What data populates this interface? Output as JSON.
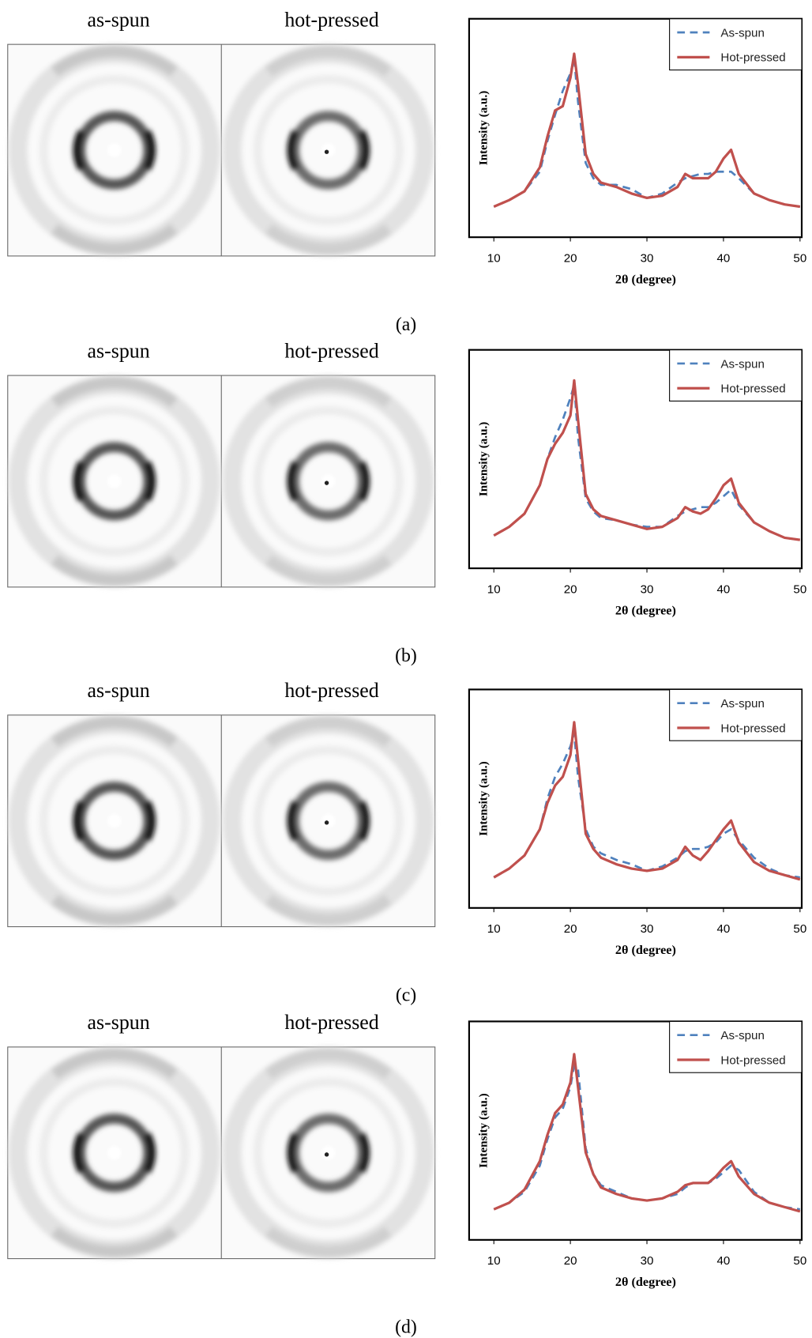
{
  "chart_data": [
    {
      "type": "line",
      "image_labels": [
        "as-spun",
        "hot-pressed"
      ],
      "panel_label": "(a)",
      "y_label": "Intensity (a.u.)",
      "x_label": "2θ (degree)",
      "legend": "upper right",
      "xlim": [
        10,
        50
      ],
      "xticks": [
        10,
        20,
        30,
        40,
        50
      ],
      "ylim": [
        0,
        100
      ],
      "x": [
        10,
        12,
        14,
        16,
        17,
        18,
        19,
        20,
        20.5,
        21,
        22,
        23,
        24,
        26,
        28,
        30,
        32,
        34,
        35,
        36,
        37,
        38,
        39,
        40,
        41,
        42,
        44,
        46,
        48,
        50
      ],
      "series": [
        {
          "name": "As-spun",
          "color": "#4f81bd",
          "dash": true,
          "values": [
            14,
            17,
            21,
            30,
            44,
            56,
            67,
            75,
            82,
            62,
            34,
            27,
            24,
            24,
            22,
            18,
            20,
            25,
            27,
            28,
            29,
            29,
            30,
            30,
            30,
            27,
            20,
            17,
            15,
            14
          ]
        },
        {
          "name": "Hot-pressed",
          "color": "#c0504d",
          "dash": false,
          "values": [
            14,
            17,
            21,
            32,
            46,
            58,
            60,
            73,
            84,
            70,
            38,
            29,
            25,
            23,
            20,
            18,
            19,
            23,
            29,
            27,
            27,
            27,
            30,
            36,
            40,
            29,
            20,
            17,
            15,
            14
          ]
        }
      ]
    },
    {
      "type": "line",
      "image_labels": [
        "as-spun",
        "hot-pressed"
      ],
      "panel_label": "(b)",
      "y_label": "Intensity (a.u.)",
      "x_label": "2θ (degree)",
      "legend": "upper right",
      "xlim": [
        10,
        50
      ],
      "xticks": [
        10,
        20,
        30,
        40,
        50
      ],
      "ylim": [
        0,
        100
      ],
      "x": [
        10,
        12,
        14,
        16,
        17,
        18,
        19,
        20,
        20.5,
        21,
        22,
        23,
        24,
        26,
        28,
        30,
        32,
        34,
        35,
        36,
        37,
        38,
        39,
        40,
        41,
        42,
        44,
        46,
        48,
        50
      ],
      "series": [
        {
          "name": "As-spun",
          "color": "#4f81bd",
          "dash": true,
          "values": [
            15,
            19,
            25,
            38,
            50,
            60,
            68,
            78,
            84,
            60,
            32,
            26,
            23,
            22,
            20,
            19,
            19,
            24,
            26,
            27,
            28,
            28,
            30,
            33,
            36,
            29,
            21,
            17,
            14,
            13
          ]
        },
        {
          "name": "Hot-pressed",
          "color": "#c0504d",
          "dash": false,
          "values": [
            15,
            19,
            25,
            38,
            50,
            57,
            62,
            70,
            86,
            68,
            34,
            27,
            24,
            22,
            20,
            18,
            19,
            23,
            28,
            26,
            25,
            27,
            32,
            38,
            41,
            30,
            21,
            17,
            14,
            13
          ]
        }
      ]
    },
    {
      "type": "line",
      "image_labels": [
        "as-spun",
        "hot-pressed"
      ],
      "panel_label": "(c)",
      "y_label": "Intensity (a.u.)",
      "x_label": "2θ  (degree)",
      "legend": "upper right",
      "xlim": [
        10,
        50
      ],
      "xticks": [
        10,
        20,
        30,
        40,
        50
      ],
      "ylim": [
        0,
        100
      ],
      "x": [
        10,
        12,
        14,
        16,
        17,
        18,
        19,
        20,
        20.5,
        21,
        22,
        23,
        24,
        26,
        28,
        30,
        32,
        34,
        35,
        36,
        37,
        38,
        39,
        40,
        41,
        42,
        44,
        46,
        48,
        50
      ],
      "series": [
        {
          "name": "As-spun",
          "color": "#4f81bd",
          "dash": true,
          "values": [
            14,
            18,
            24,
            36,
            50,
            60,
            66,
            74,
            80,
            60,
            36,
            28,
            25,
            22,
            20,
            17,
            19,
            23,
            26,
            27,
            27,
            28,
            30,
            34,
            36,
            31,
            23,
            18,
            15,
            14
          ]
        },
        {
          "name": "Hot-pressed",
          "color": "#c0504d",
          "dash": false,
          "values": [
            14,
            18,
            24,
            36,
            48,
            56,
            60,
            70,
            85,
            68,
            34,
            27,
            23,
            20,
            18,
            17,
            18,
            22,
            28,
            24,
            22,
            26,
            31,
            36,
            40,
            30,
            21,
            17,
            15,
            13
          ]
        }
      ]
    },
    {
      "type": "line",
      "image_labels": [
        "as-spun",
        "hot-pressed"
      ],
      "panel_label": "(d)",
      "y_label": "Intensity (a.u.)",
      "x_label": "2θ  (degree)",
      "legend": "upper right",
      "xlim": [
        10,
        50
      ],
      "xticks": [
        10,
        20,
        30,
        40,
        50
      ],
      "ylim": [
        0,
        100
      ],
      "x": [
        10,
        12,
        14,
        16,
        17,
        18,
        19,
        20,
        20.5,
        21,
        22,
        23,
        24,
        26,
        28,
        30,
        32,
        34,
        35,
        36,
        37,
        38,
        39,
        40,
        41,
        42,
        44,
        46,
        48,
        50
      ],
      "series": [
        {
          "name": "As-spun",
          "color": "#4f81bd",
          "dash": true,
          "values": [
            14,
            17,
            22,
            34,
            46,
            56,
            60,
            70,
            80,
            78,
            42,
            30,
            25,
            22,
            19,
            18,
            19,
            21,
            24,
            26,
            26,
            26,
            28,
            31,
            34,
            32,
            22,
            17,
            15,
            14
          ]
        },
        {
          "name": "Hot-pressed",
          "color": "#c0504d",
          "dash": false,
          "values": [
            14,
            17,
            23,
            36,
            48,
            58,
            62,
            72,
            85,
            70,
            40,
            30,
            24,
            21,
            19,
            18,
            19,
            22,
            25,
            26,
            26,
            26,
            29,
            33,
            36,
            29,
            21,
            17,
            15,
            13
          ]
        }
      ]
    }
  ]
}
